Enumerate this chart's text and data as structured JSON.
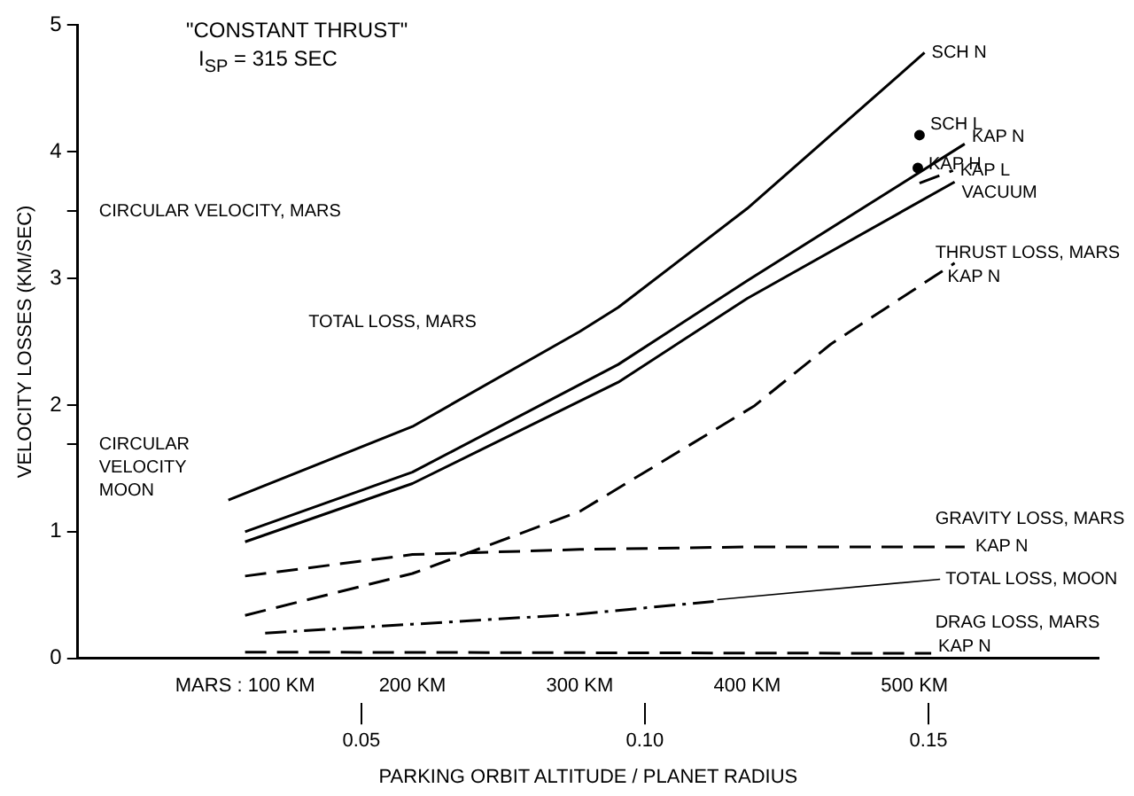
{
  "chart_data": {
    "type": "line",
    "title": "\"CONSTANT THRUST\"",
    "subtitle": "I$_{SP}$ = 315 SEC",
    "xlabel": "PARKING ORBIT ALTITUDE / PLANET RADIUS",
    "ylabel": "VELOCITY LOSSES (KM/SEC)",
    "xlim": [
      0,
      610
    ],
    "xticks": [
      {
        "value": 100,
        "label": "MARS : 100 KM"
      },
      {
        "value": 200,
        "label": "200 KM"
      },
      {
        "value": 300,
        "label": "300 KM"
      },
      {
        "value": 400,
        "label": "400 KM"
      },
      {
        "value": 500,
        "label": "500 KM"
      }
    ],
    "x2lim": [
      0,
      0.18
    ],
    "x2ticks": [
      0.05,
      {
        "value": 0.1,
        "label": "0.10"
      },
      0.15
    ],
    "ylim": [
      0,
      5
    ],
    "yticks": [
      0,
      1,
      2,
      3,
      {
        "value": 3.53,
        "label": null
      },
      {
        "value": 1.69,
        "label": null
      },
      4,
      5
    ],
    "grid": false,
    "legend": false,
    "marker": "none",
    "series": [
      {
        "name": "SCH N",
        "color": "#000000",
        "line_style": "solid",
        "x": [
          90,
          200,
          300,
          323,
          400,
          506
        ],
        "values": [
          1.25,
          1.83,
          2.58,
          2.77,
          3.55,
          4.78
        ]
      },
      {
        "name": "SCH L",
        "type": "scatter",
        "marker": "circle",
        "color": "#000000",
        "x": [
          503
        ],
        "values": [
          4.13
        ]
      },
      {
        "name": "KAP H",
        "type": "scatter",
        "marker": "circle",
        "color": "#000000",
        "x": [
          502
        ],
        "values": [
          3.87
        ]
      },
      {
        "name": "KAP N",
        "color": "#000000",
        "line_style": "solid",
        "x": [
          100,
          200,
          323,
          400,
          530
        ],
        "values": [
          1.0,
          1.47,
          2.32,
          2.98,
          4.06
        ]
      },
      {
        "name": "KAP L",
        "color": "#000000",
        "line_style": "dashed",
        "x": [
          503,
          523
        ],
        "values": [
          3.75,
          3.85
        ]
      },
      {
        "name": "VACUUM",
        "color": "#000000",
        "line_style": "solid",
        "x": [
          100,
          200,
          323,
          400,
          524
        ],
        "values": [
          0.92,
          1.38,
          2.18,
          2.84,
          3.76
        ]
      },
      {
        "name": "KAP N",
        "color": "#000000",
        "line_style": "dashed",
        "x": [
          100,
          200,
          300,
          404,
          450,
          524
        ],
        "values": [
          0.34,
          0.67,
          1.16,
          1.99,
          2.48,
          3.12
        ]
      },
      {
        "name": "KAP N",
        "color": "#000000",
        "line_style": "dashed",
        "x": [
          100,
          200,
          300,
          400,
          530
        ],
        "values": [
          0.65,
          0.82,
          0.86,
          0.88,
          0.88
        ]
      },
      {
        "name": "TOTAL LOSS, MOON",
        "color": "#000000",
        "line_style": "dashdot",
        "x": [
          112,
          200,
          300,
          380
        ],
        "values": [
          0.2,
          0.27,
          0.35,
          0.45
        ]
      },
      {
        "name": "KAP N",
        "color": "#000000",
        "line_style": "dashed",
        "x": [
          100,
          510
        ],
        "values": [
          0.05,
          0.04
        ]
      }
    ],
    "annotations": [
      "TOTAL LOSS, MARS",
      "THRUST LOSS, MARS",
      "GRAVITY LOSS, MARS",
      "DRAG LOSS, MARS",
      "CIRCULAR VELOCITY, MARS",
      "CIRCULAR",
      "VELOCITY",
      "MOON"
    ]
  }
}
